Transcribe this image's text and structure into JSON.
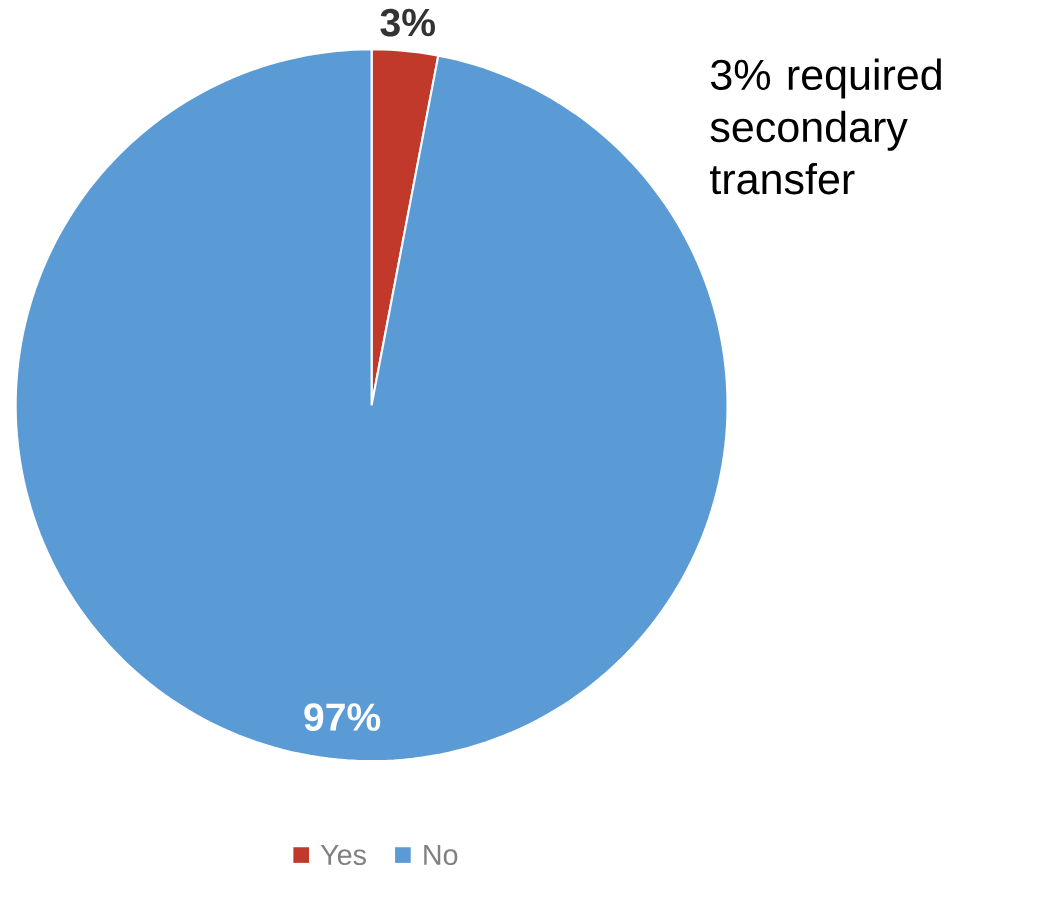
{
  "chart_data": {
    "type": "pie",
    "categories": [
      "Yes",
      "No"
    ],
    "values": [
      3,
      97
    ],
    "colors": [
      "#c0392b",
      "#5b9bd5"
    ],
    "value_labels": [
      "3%",
      "97%"
    ],
    "annotations": [
      "3% required secondary transfer"
    ],
    "legend": "bottom"
  }
}
